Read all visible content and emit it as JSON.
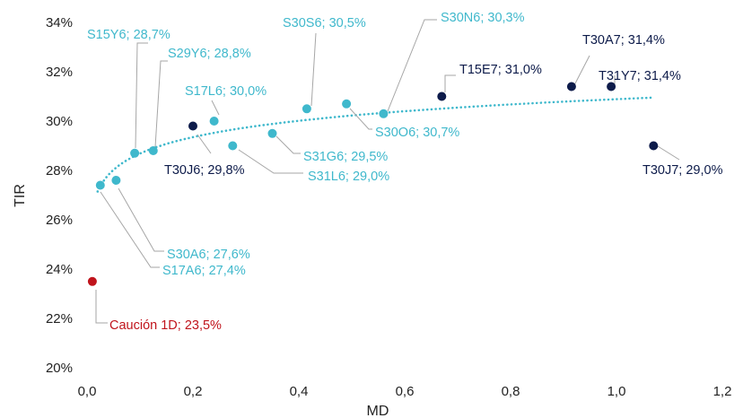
{
  "colors": {
    "s_series": "#3fb8cc",
    "t_series": "#0d1b4a",
    "caucion": "#c0141c",
    "leader": "#a6a6a6",
    "trend": "#3fb8cc"
  },
  "chart_data": {
    "type": "scatter",
    "title": "",
    "xlabel": "MD",
    "ylabel": "TIR",
    "xlim": [
      0,
      1.2
    ],
    "ylim": [
      20,
      34
    ],
    "x_ticks": [
      "0,0",
      "0,2",
      "0,4",
      "0,6",
      "0,8",
      "1,0",
      "1,2"
    ],
    "y_ticks": [
      "20%",
      "22%",
      "24%",
      "26%",
      "28%",
      "30%",
      "32%",
      "34%"
    ],
    "grid": false,
    "legend": "none",
    "trendline": {
      "type": "logarithmic",
      "style": "dotted",
      "x_range": [
        0.02,
        1.07
      ]
    },
    "points": [
      {
        "label": "Caución 1D; 23,5%",
        "x": 0.01,
        "y": 23.5,
        "group": "caucion"
      },
      {
        "label": "S17A6; 27,4%",
        "x": 0.025,
        "y": 27.4,
        "group": "S"
      },
      {
        "label": "S30A6; 27,6%",
        "x": 0.055,
        "y": 27.6,
        "group": "S"
      },
      {
        "label": "S15Y6; 28,7%",
        "x": 0.09,
        "y": 28.7,
        "group": "S"
      },
      {
        "label": "S29Y6; 28,8%",
        "x": 0.125,
        "y": 28.8,
        "group": "S"
      },
      {
        "label": "T30J6; 29,8%",
        "x": 0.2,
        "y": 29.8,
        "group": "T"
      },
      {
        "label": "S17L6; 30,0%",
        "x": 0.24,
        "y": 30.0,
        "group": "S"
      },
      {
        "label": "S31L6; 29,0%",
        "x": 0.275,
        "y": 29.0,
        "group": "S"
      },
      {
        "label": "S31G6; 29,5%",
        "x": 0.35,
        "y": 29.5,
        "group": "S"
      },
      {
        "label": "S30S6; 30,5%",
        "x": 0.415,
        "y": 30.5,
        "group": "S"
      },
      {
        "label": "S30O6; 30,7%",
        "x": 0.49,
        "y": 30.7,
        "group": "S"
      },
      {
        "label": "S30N6; 30,3%",
        "x": 0.56,
        "y": 30.3,
        "group": "S"
      },
      {
        "label": "T15E7; 31,0%",
        "x": 0.67,
        "y": 31.0,
        "group": "T"
      },
      {
        "label": "T30A7; 31,4%",
        "x": 0.915,
        "y": 31.4,
        "group": "T"
      },
      {
        "label": "T31Y7; 31,4%",
        "x": 0.99,
        "y": 31.4,
        "group": "T"
      },
      {
        "label": "T30J7; 29,0%",
        "x": 1.07,
        "y": 29.0,
        "group": "T"
      }
    ]
  }
}
